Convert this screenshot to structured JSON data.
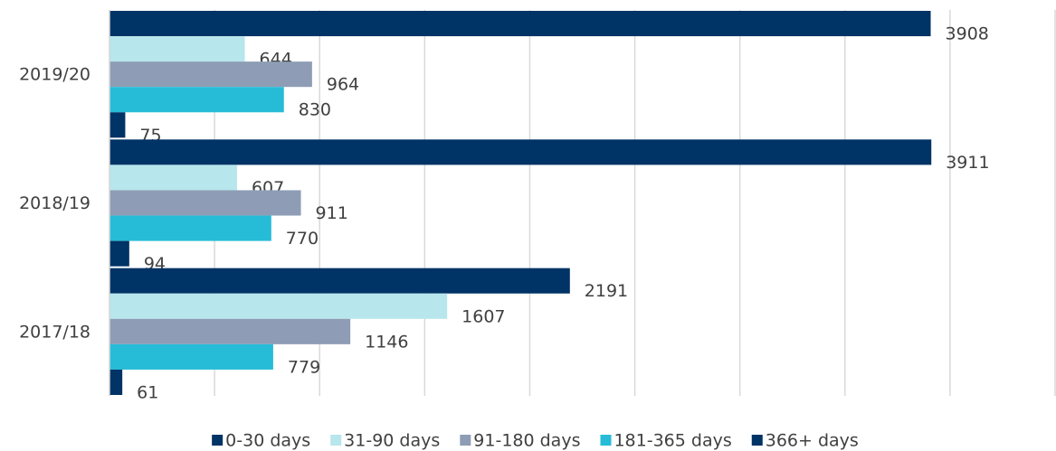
{
  "chart_data": {
    "type": "bar",
    "orientation": "horizontal",
    "categories": [
      "2019/20",
      "2018/19",
      "2017/18"
    ],
    "series": [
      {
        "name": "0-30 days",
        "color": "#003366",
        "values": [
          3908,
          3911,
          2191
        ]
      },
      {
        "name": "31-90 days",
        "color": "#b7e6ec",
        "values": [
          644,
          607,
          1607
        ]
      },
      {
        "name": "91-180 days",
        "color": "#8e9db5",
        "values": [
          964,
          911,
          1146
        ]
      },
      {
        "name": "181-365 days",
        "color": "#26bcd7",
        "values": [
          830,
          770,
          779
        ]
      },
      {
        "name": "366+ days",
        "color": "#003366",
        "values": [
          75,
          94,
          61
        ]
      }
    ],
    "xlim": [
      0,
      4500
    ],
    "xticks": [
      0,
      500,
      1000,
      1500,
      2000,
      2500,
      3000,
      3500,
      4000,
      4500
    ],
    "grid": true,
    "legend": "bottom"
  }
}
